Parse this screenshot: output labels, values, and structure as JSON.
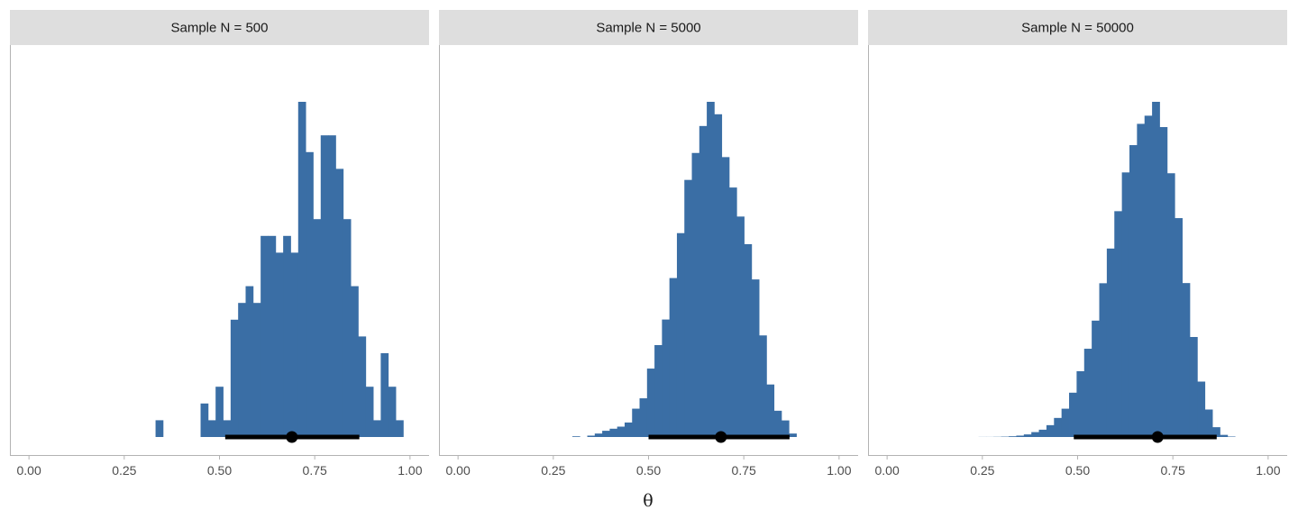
{
  "chart_data": {
    "type": "histogram",
    "xlabel": "θ",
    "xlim": [
      -0.05,
      1.05
    ],
    "x_ticks": [
      0,
      0.25,
      0.5,
      0.75,
      1
    ],
    "x_tick_labels": [
      "0.00",
      "0.25",
      "0.50",
      "0.75",
      "1.00"
    ],
    "colors": {
      "bar": "#3a6ea5",
      "strip": "#dedede",
      "interval": "#000000"
    },
    "panels": [
      {
        "strip_label": "Sample N = 500",
        "bin_start": 0.3125,
        "bin_width": 0.0197,
        "counts": [
          0,
          1,
          0,
          0,
          0,
          0,
          0,
          2,
          1,
          3,
          1,
          7,
          8,
          9,
          8,
          12,
          12,
          11,
          12,
          11,
          20,
          17,
          13,
          18,
          18,
          16,
          13,
          9,
          6,
          3,
          1,
          5,
          3,
          1
        ],
        "interval": {
          "lower": 0.515,
          "upper": 0.867,
          "point": 0.69
        }
      },
      {
        "strip_label": "Sample N = 5000",
        "bin_start": 0.3,
        "bin_width": 0.0196,
        "counts": [
          1,
          0,
          2,
          5,
          9,
          12,
          15,
          21,
          41,
          56,
          99,
          133,
          170,
          230,
          295,
          372,
          411,
          450,
          485,
          467,
          405,
          361,
          319,
          279,
          228,
          147,
          76,
          38,
          24,
          5
        ],
        "interval": {
          "lower": 0.5,
          "upper": 0.87,
          "point": 0.69
        }
      },
      {
        "strip_label": "Sample N = 50000",
        "bin_start": 0.24,
        "bin_width": 0.0198,
        "counts": [
          1,
          1,
          2,
          4,
          8,
          15,
          28,
          53,
          79,
          128,
          206,
          306,
          479,
          711,
          954,
          1258,
          1662,
          2037,
          2441,
          2860,
          3155,
          3385,
          3473,
          3623,
          3350,
          2851,
          2366,
          1664,
          1081,
          599,
          297,
          106,
          23,
          5
        ],
        "interval": {
          "lower": 0.49,
          "upper": 0.865,
          "point": 0.71
        }
      }
    ]
  }
}
